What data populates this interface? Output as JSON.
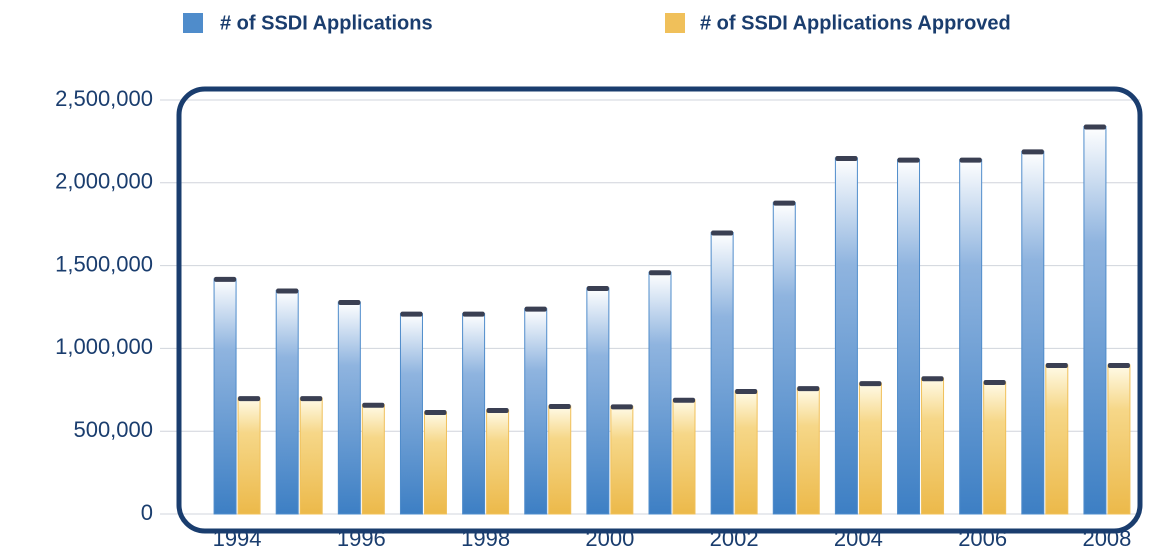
{
  "chart_data": {
    "type": "bar",
    "categories": [
      "1994",
      null,
      "1996",
      null,
      "1998",
      null,
      "2000",
      null,
      "2002",
      null,
      "2004",
      null,
      "2006",
      null,
      "2008"
    ],
    "series": [
      {
        "name": "# of SSDI Applications",
        "color": "#4f8ccb",
        "values": [
          1420000,
          1350000,
          1280000,
          1210000,
          1210000,
          1240000,
          1365000,
          1460000,
          1700000,
          1880000,
          2150000,
          2140000,
          2140000,
          2190000,
          2340000
        ]
      },
      {
        "name": "# of SSDI Applications Approved",
        "color": "#f0c05a",
        "values": [
          700000,
          700000,
          660000,
          616000,
          628000,
          652000,
          650000,
          690000,
          743000,
          760000,
          790000,
          820000,
          797000,
          900000,
          900000
        ]
      }
    ],
    "ylim": [
      0,
      2500000
    ],
    "yticks": [
      0,
      {
        "value": 500000,
        "label": "500,000"
      },
      {
        "value": 1000000,
        "label": "1,000,000"
      },
      {
        "value": 1500000,
        "label": "1,500,000"
      },
      {
        "value": 2000000,
        "label": "2,000,000"
      },
      {
        "value": 2500000,
        "label": "2,500,000"
      }
    ],
    "grid": true
  }
}
